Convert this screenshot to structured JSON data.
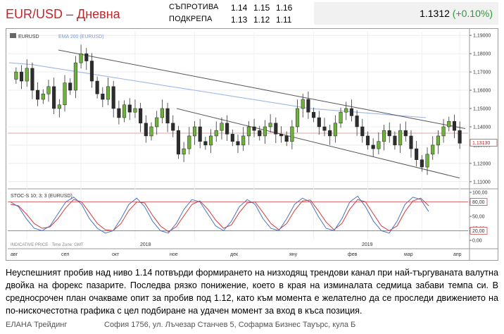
{
  "header": {
    "title": "EUR/USD – Дневна",
    "resistance_label": "Съпротива",
    "support_label": "Подкрепа",
    "resistance_levels": [
      "1.14",
      "1.15",
      "1.16"
    ],
    "support_levels": [
      "1.13",
      "1.12",
      "1.11"
    ],
    "price": "1.1312",
    "change": "(+0.10%)"
  },
  "chart_data": [
    {
      "type": "candlestick",
      "legend": [
        "EURUSD",
        "EMA 200 (EURUSD)"
      ],
      "last_price_label": "1,13130",
      "y_ticks": [
        "1,19000",
        "1,18000",
        "1,17000",
        "1,16000",
        "1,15000",
        "1,14000",
        "1,13000",
        "1,12000",
        "1,11000"
      ],
      "ylim": [
        1.108,
        1.192
      ],
      "x_labels": [
        "авг",
        "сеп",
        "окт",
        "ное",
        "дек",
        "яну",
        "фев",
        "мар",
        "апр"
      ],
      "year_labels": [
        "2018",
        "2019"
      ],
      "close_approx": [
        1.17,
        1.165,
        1.172,
        1.16,
        1.155,
        1.158,
        1.162,
        1.15,
        1.152,
        1.164,
        1.16,
        1.175,
        1.18,
        1.176,
        1.165,
        1.158,
        1.155,
        1.162,
        1.15,
        1.145,
        1.152,
        1.148,
        1.15,
        1.142,
        1.135,
        1.14,
        1.145,
        1.15,
        1.142,
        1.138,
        1.125,
        1.128,
        1.135,
        1.14,
        1.132,
        1.13,
        1.135,
        1.138,
        1.142,
        1.136,
        1.132,
        1.13,
        1.135,
        1.14,
        1.138,
        1.135,
        1.14,
        1.142,
        1.136,
        1.135,
        1.132,
        1.14,
        1.15,
        1.155,
        1.148,
        1.145,
        1.14,
        1.138,
        1.135,
        1.142,
        1.148,
        1.15,
        1.146,
        1.14,
        1.135,
        1.13,
        1.128,
        1.132,
        1.138,
        1.135,
        1.13,
        1.138,
        1.135,
        1.128,
        1.122,
        1.118,
        1.125,
        1.13,
        1.135,
        1.14,
        1.143,
        1.138,
        1.131
      ],
      "ema200_approx": [
        1.175,
        1.174,
        1.172,
        1.17,
        1.168,
        1.166,
        1.164,
        1.162,
        1.16,
        1.158,
        1.156,
        1.154,
        1.152,
        1.15,
        1.149,
        1.148,
        1.147,
        1.146,
        1.145
      ],
      "trend_upper": [
        [
          1.182,
          0
        ],
        [
          1.139,
          1
        ]
      ],
      "trend_lower": [
        [
          1.15,
          0
        ],
        [
          1.112,
          1
        ]
      ],
      "resistance_line": 1.1365
    },
    {
      "type": "line",
      "legend": "STOC-S 10; 3; 3 (EURUSD)",
      "y_ticks": [
        "100,00",
        "80,00",
        "50,00",
        "25,00",
        "20,00",
        "0,00"
      ],
      "ylim": [
        0,
        100
      ],
      "overbought": 80,
      "oversold": 20,
      "footer_label": "INDICATIVE PRICE · Time Zone: GMT",
      "k_approx": [
        80,
        70,
        45,
        25,
        20,
        30,
        55,
        80,
        90,
        75,
        45,
        25,
        15,
        20,
        45,
        75,
        88,
        70,
        40,
        20,
        15,
        35,
        65,
        85,
        80,
        55,
        30,
        20,
        40,
        70,
        85,
        75,
        45,
        25,
        20,
        45,
        75,
        88,
        80,
        50,
        25,
        20,
        45,
        80,
        92,
        70,
        40,
        20,
        15,
        40,
        75,
        90,
        85,
        60
      ],
      "d_approx": [
        75,
        72,
        55,
        35,
        25,
        28,
        45,
        68,
        85,
        80,
        58,
        35,
        22,
        20,
        35,
        62,
        80,
        78,
        52,
        30,
        18,
        28,
        52,
        75,
        82,
        65,
        42,
        25,
        32,
        58,
        78,
        80,
        58,
        35,
        22,
        35,
        62,
        82,
        84,
        62,
        38,
        22,
        35,
        65,
        85,
        80,
        55,
        30,
        20,
        30,
        60,
        82,
        88,
        72
      ]
    }
  ],
  "comment": "Неуспешният пробив над ниво 1.14 потвърди формирането на низходящ трендови канал при най-търгуваната валутна двойка на форекс пазарите. Последва рязко понижение, което в края на изминалата седмица забави темпа си. В средносрочен план очакваме опит за пробив под 1.12, като към момента е желателно да се проследи движението на по-нискочестотна графика с цел подбиране на удачен момент за вход в къса позиция.",
  "footer": {
    "company": "ЕЛАНА Трейдинг",
    "address": "София 1756, ул. Лъчезар Станчев 5, Софарма Бизнес Тауърс, кула Б"
  }
}
